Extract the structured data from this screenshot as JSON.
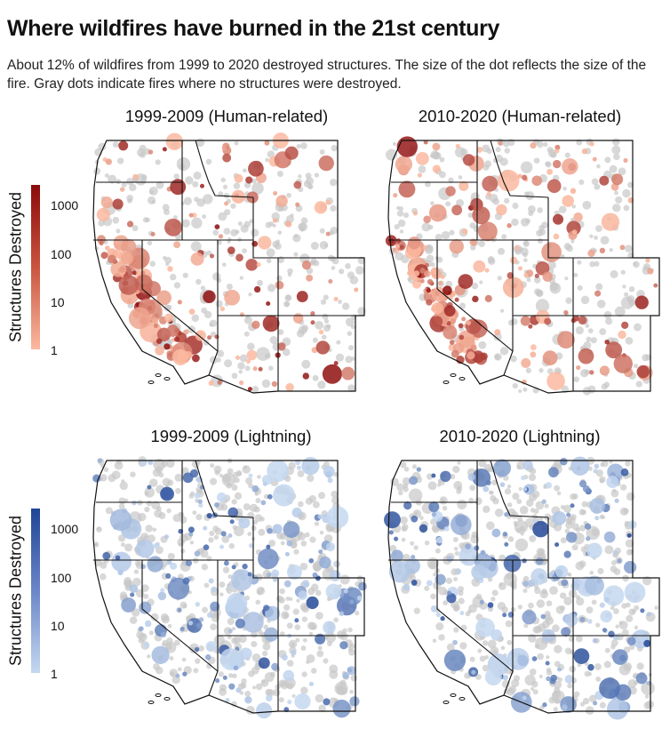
{
  "title": "Where wildfires have burned in the 21st century",
  "subtitle": "About 12% of wildfires from 1999 to 2020 destroyed structures. The size of the dot reflects the size of the fire. Gray dots indicate fires where no structures were destroyed.",
  "chart_data": {
    "type": "scatter",
    "panels": [
      {
        "title": "1999-2009 (Human-related)",
        "cause": "human",
        "color_scale": [
          "#fbb9a0",
          "#8b0a0a"
        ]
      },
      {
        "title": "2010-2020 (Human-related)",
        "cause": "human",
        "color_scale": [
          "#fbb9a0",
          "#8b0a0a"
        ]
      },
      {
        "title": "1999-2009 (Lightning)",
        "cause": "lightning",
        "color_scale": [
          "#c5d8f0",
          "#1f4596"
        ]
      },
      {
        "title": "2010-2020 (Lightning)",
        "cause": "lightning",
        "color_scale": [
          "#c5d8f0",
          "#1f4596"
        ]
      }
    ],
    "legends": [
      {
        "title": "Structures Destroyed",
        "ticks": [
          "1000",
          "100",
          "10",
          "1"
        ],
        "scale": "log",
        "range": [
          1,
          1000
        ],
        "colors": [
          "#fbb9a0",
          "#8b0a0a"
        ]
      },
      {
        "title": "Structures Destroyed",
        "ticks": [
          "1000",
          "100",
          "10",
          "1"
        ],
        "scale": "log",
        "range": [
          1,
          1000
        ],
        "colors": [
          "#c5d8f0",
          "#1f4596"
        ]
      }
    ],
    "no_structures_color": "#c8c8c8",
    "size_encodes": "fire size"
  }
}
